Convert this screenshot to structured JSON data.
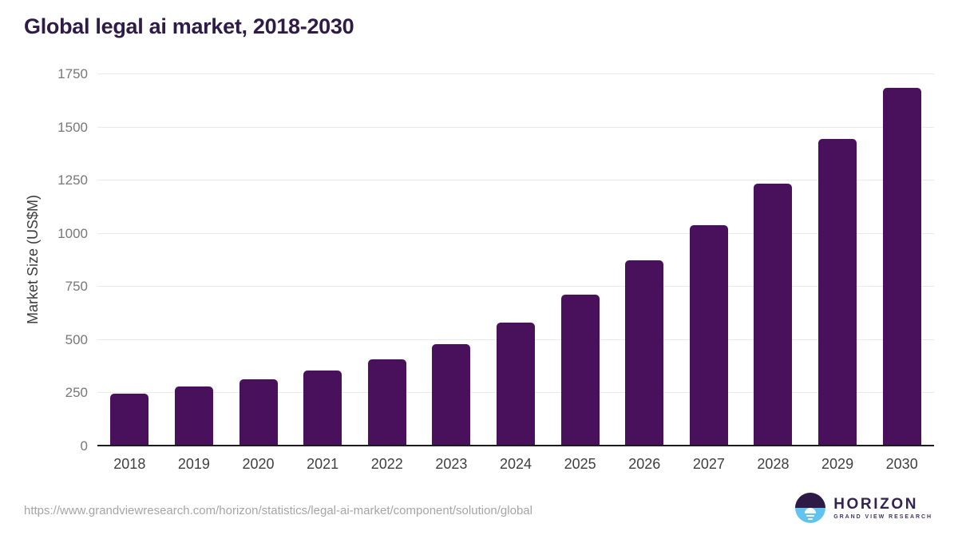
{
  "page": {
    "source_url": "https://www.grandviewresearch.com/horizon/statistics/legal-ai-market/component/solution/global"
  },
  "logo": {
    "name": "HORIZON",
    "subtitle": "GRAND VIEW RESEARCH"
  },
  "colors": {
    "bar": "#49115c",
    "title": "#2e1b47",
    "gridline": "#e9e9e9",
    "axis_line": "#1c1c1c",
    "y_tick_text": "#787878",
    "x_tick_text": "#3f3f3f",
    "source_url_text": "#a5a5a5",
    "logo_purple": "#2e1a47",
    "logo_blue": "#62c4ee"
  },
  "chart_data": {
    "type": "bar",
    "title": "Global legal ai market, 2018-2030",
    "categories": [
      "2018",
      "2019",
      "2020",
      "2021",
      "2022",
      "2023",
      "2024",
      "2025",
      "2026",
      "2027",
      "2028",
      "2029",
      "2030"
    ],
    "values": [
      245,
      278,
      312,
      352,
      405,
      476,
      578,
      710,
      870,
      1035,
      1230,
      1442,
      1682
    ],
    "xlabel": "",
    "ylabel": "Market Size (US$M)",
    "ylim": [
      0,
      1750
    ],
    "ytick_step": 250,
    "yticks": [
      0,
      250,
      500,
      750,
      1000,
      1250,
      1500,
      1750
    ],
    "grid": true,
    "legend": "none",
    "bar_color": "#49115c"
  }
}
